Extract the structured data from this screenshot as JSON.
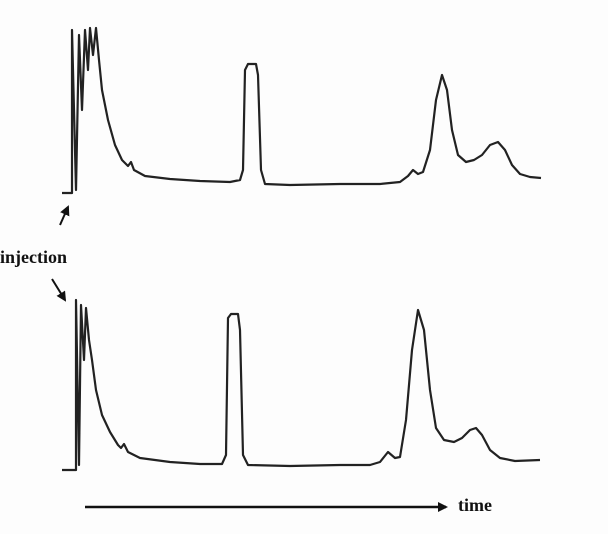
{
  "labels": {
    "injection": "injection",
    "time": "time"
  }
}
